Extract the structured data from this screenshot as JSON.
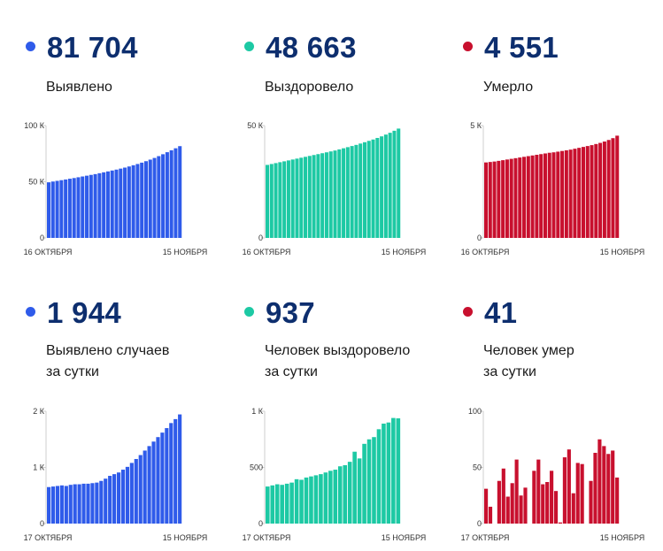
{
  "colors": {
    "blue": "#2f5bea",
    "teal": "#1dc9a4",
    "red": "#c8102e",
    "number": "#0d2e6e"
  },
  "panels": [
    {
      "id": "p1",
      "value": "81 704",
      "label_lines": [
        "Выявлено"
      ],
      "color": "blue"
    },
    {
      "id": "p2",
      "value": "48 663",
      "label_lines": [
        "Выздоровело"
      ],
      "color": "teal"
    },
    {
      "id": "p3",
      "value": "4 551",
      "label_lines": [
        "Умерло"
      ],
      "color": "red"
    },
    {
      "id": "p4",
      "value": "1 944",
      "label_lines": [
        "Выявлено случаев",
        "за сутки"
      ],
      "color": "blue"
    },
    {
      "id": "p5",
      "value": "937",
      "label_lines": [
        "Человек выздоровело",
        "за сутки"
      ],
      "color": "teal"
    },
    {
      "id": "p6",
      "value": "41",
      "label_lines": [
        "Человек умер",
        "за сутки"
      ],
      "color": "red"
    }
  ],
  "chart_data": [
    {
      "type": "bar",
      "color": "blue",
      "ylim": [
        0,
        100000
      ],
      "yticks": [
        {
          "v": 0,
          "label": "0"
        },
        {
          "v": 50000,
          "label": "50 К"
        },
        {
          "v": 100000,
          "label": "100 К"
        }
      ],
      "xlabels": [
        "16 ОКТЯБРЯ",
        "15 НОЯБРЯ"
      ],
      "values": [
        49500,
        50200,
        50800,
        51400,
        52000,
        52700,
        53300,
        54000,
        54700,
        55400,
        56100,
        56800,
        57600,
        58400,
        59200,
        60000,
        60800,
        61700,
        62600,
        63600,
        64700,
        65800,
        67000,
        68300,
        69700,
        71200,
        72800,
        74500,
        76300,
        78000,
        79800,
        81704
      ]
    },
    {
      "type": "bar",
      "color": "teal",
      "ylim": [
        0,
        50000
      ],
      "yticks": [
        {
          "v": 0,
          "label": "0"
        },
        {
          "v": 50000,
          "label": "50 К"
        }
      ],
      "xlabels": [
        "16 ОКТЯБРЯ",
        "15 НОЯБРЯ"
      ],
      "values": [
        32500,
        32900,
        33300,
        33700,
        34100,
        34500,
        34900,
        35300,
        35700,
        36100,
        36500,
        36900,
        37300,
        37700,
        38100,
        38500,
        38900,
        39400,
        39900,
        40400,
        40900,
        41400,
        42000,
        42600,
        43200,
        43800,
        44500,
        45200,
        46000,
        46800,
        47700,
        48663
      ]
    },
    {
      "type": "bar",
      "color": "red",
      "ylim": [
        0,
        5000
      ],
      "yticks": [
        {
          "v": 0,
          "label": "0"
        },
        {
          "v": 5000,
          "label": "5 К"
        }
      ],
      "xlabels": [
        "16 ОКТЯБРЯ",
        "15 НОЯБРЯ"
      ],
      "values": [
        3360,
        3380,
        3400,
        3430,
        3460,
        3490,
        3520,
        3550,
        3580,
        3610,
        3640,
        3670,
        3700,
        3730,
        3760,
        3790,
        3810,
        3840,
        3870,
        3900,
        3930,
        3970,
        4010,
        4050,
        4090,
        4130,
        4180,
        4230,
        4290,
        4360,
        4440,
        4551
      ]
    },
    {
      "type": "bar",
      "color": "blue",
      "ylim": [
        0,
        2000
      ],
      "yticks": [
        {
          "v": 0,
          "label": "0"
        },
        {
          "v": 1000,
          "label": "1 К"
        },
        {
          "v": 2000,
          "label": "2 К"
        }
      ],
      "xlabels": [
        "17 ОКТЯБРЯ",
        "15 НОЯБРЯ"
      ],
      "values": [
        650,
        660,
        670,
        680,
        670,
        690,
        700,
        700,
        710,
        710,
        720,
        730,
        760,
        800,
        850,
        880,
        910,
        960,
        1010,
        1080,
        1150,
        1220,
        1300,
        1380,
        1460,
        1540,
        1620,
        1700,
        1790,
        1860,
        1944
      ]
    },
    {
      "type": "bar",
      "color": "teal",
      "ylim": [
        0,
        1000
      ],
      "yticks": [
        {
          "v": 0,
          "label": "0"
        },
        {
          "v": 500,
          "label": "500"
        },
        {
          "v": 1000,
          "label": "1 К"
        }
      ],
      "xlabels": [
        "17 ОКТЯБРЯ",
        "15 НОЯБРЯ"
      ],
      "values": [
        330,
        340,
        350,
        345,
        355,
        365,
        395,
        390,
        410,
        420,
        430,
        440,
        455,
        470,
        480,
        510,
        520,
        550,
        640,
        580,
        710,
        750,
        770,
        840,
        890,
        900,
        940,
        937
      ]
    },
    {
      "type": "bar",
      "color": "red",
      "ylim": [
        0,
        100
      ],
      "yticks": [
        {
          "v": 0,
          "label": "0"
        },
        {
          "v": 50,
          "label": "50"
        },
        {
          "v": 100,
          "label": "100"
        }
      ],
      "xlabels": [
        "17 ОКТЯБРЯ",
        "15 НОЯБРЯ"
      ],
      "values": [
        31,
        15,
        0,
        38,
        49,
        24,
        36,
        57,
        25,
        32,
        0,
        47,
        57,
        35,
        37,
        47,
        29,
        1,
        59,
        66,
        27,
        54,
        53,
        0,
        38,
        63,
        75,
        69,
        62,
        65,
        41
      ]
    }
  ]
}
